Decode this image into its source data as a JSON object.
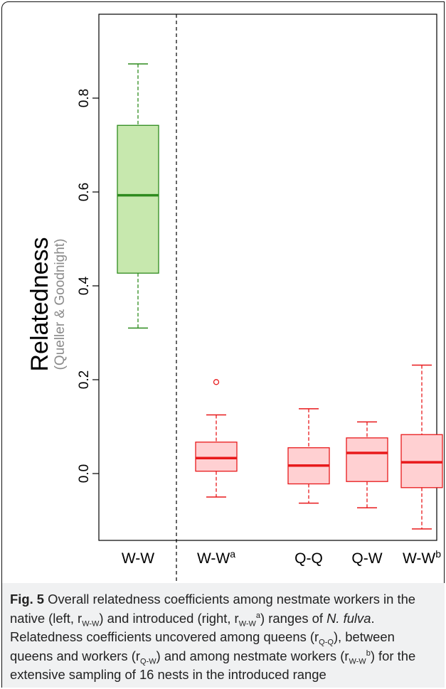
{
  "chart_data": {
    "type": "box",
    "ylabel": "Relatedness",
    "ylabel_sub": "(Queller & Goodnight)",
    "yticks": [
      "0.0",
      "0.2",
      "0.4",
      "0.6",
      "0.8"
    ],
    "ylim": [
      -0.13,
      0.93
    ],
    "divider": "dashed line between native (left) and introduced (right) ranges",
    "categories": [
      "W-W",
      "W-W",
      "Q-Q",
      "Q-W",
      "W-W"
    ],
    "category_superscripts": [
      "",
      "a",
      "",
      "",
      "b"
    ],
    "boxes": [
      {
        "label": "W-W",
        "min": 0.31,
        "q1": 0.427,
        "median": 0.593,
        "q3": 0.742,
        "max": 0.873,
        "outliers": [],
        "color": "#2e8b1e",
        "fill": "#c7e8ae"
      },
      {
        "label": "W-Wa",
        "min": -0.05,
        "q1": 0.005,
        "median": 0.033,
        "q3": 0.067,
        "max": 0.125,
        "outliers": [
          0.195
        ],
        "color": "#e8191b",
        "fill": "#ffd0d2"
      },
      {
        "label": "Q-Q",
        "min": -0.063,
        "q1": -0.022,
        "median": 0.017,
        "q3": 0.055,
        "max": 0.138,
        "outliers": [],
        "color": "#e8191b",
        "fill": "#ffd0d2"
      },
      {
        "label": "Q-W",
        "min": -0.073,
        "q1": -0.017,
        "median": 0.044,
        "q3": 0.076,
        "max": 0.11,
        "outliers": [],
        "color": "#e8191b",
        "fill": "#ffd0d2"
      },
      {
        "label": "W-Wb",
        "min": -0.118,
        "q1": -0.03,
        "median": 0.024,
        "q3": 0.083,
        "max": 0.231,
        "outliers": [],
        "color": "#e8191b",
        "fill": "#ffd0d2"
      }
    ]
  },
  "caption": {
    "fig_label": "Fig. 5",
    "species": "N. fulva"
  }
}
